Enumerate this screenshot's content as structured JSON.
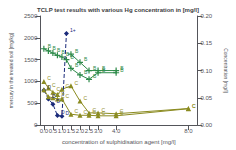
{
  "chart_data": {
    "type": "line",
    "title": "TCLP test results with various Hg concentration in [mg/l]",
    "xlabel": "concentration of sulphidisation agent [mg/l]",
    "ylabel": "mercury in the treated soil [mg/kg]",
    "y2label": "Concentration [mg/l]",
    "grid": false,
    "xlim": [
      -0.2,
      8.5
    ],
    "xticks": [
      {
        "value": 0,
        "label": "0.0"
      },
      {
        "value": 0.5,
        "label": "0.5"
      },
      {
        "value": 1.0,
        "label": "1.0"
      },
      {
        "value": 1.5,
        "label": "1.5"
      },
      {
        "value": 2.0,
        "label": "2.0"
      },
      {
        "value": 2.5,
        "label": "2.5"
      },
      {
        "value": 3.0,
        "label": "3.0"
      },
      {
        "value": 4.0,
        "label": "4.0"
      },
      {
        "value": 8.0,
        "label": "8.0"
      }
    ],
    "ylim": [
      0,
      2500
    ],
    "yticks": [
      0,
      500,
      1000,
      1500,
      2000,
      2500
    ],
    "y2lim": [
      0,
      0.2
    ],
    "y2ticks": [
      {
        "value": 0,
        "label": "0.00"
      },
      {
        "value": 0.05,
        "label": "0.05"
      },
      {
        "value": 0.1,
        "label": "0.10"
      },
      {
        "value": 0.15,
        "label": "0.15"
      },
      {
        "value": 0.2,
        "label": "0.20"
      }
    ],
    "series": [
      {
        "axis": "y",
        "color": "#2e8b4a",
        "marker": "plus",
        "line_style": "solid",
        "x": [
          0,
          0.25,
          0.5,
          0.75,
          1.0,
          1.25,
          1.5,
          2.0,
          2.5,
          3.0,
          4.0
        ],
        "values": [
          1750,
          1700,
          1650,
          1600,
          1560,
          1500,
          1300,
          1150,
          1050,
          1200,
          1200
        ],
        "annotations": [
          "B",
          "B",
          "B",
          "B",
          "B",
          "B",
          "B",
          "B",
          "B",
          "B",
          "B"
        ]
      },
      {
        "axis": "y",
        "color": "#8b8b20",
        "marker": "triangle",
        "line_style": "solid",
        "x": [
          0,
          0.25,
          0.5,
          0.75,
          1.0,
          1.5,
          2.0,
          2.5,
          3.0,
          4.0,
          8.0
        ],
        "values": [
          1000,
          850,
          750,
          700,
          820,
          900,
          550,
          280,
          280,
          260,
          380
        ],
        "annotations": [
          "C",
          "C",
          "C",
          "C",
          "C",
          "C",
          "C",
          "C",
          "C",
          "C",
          "C"
        ]
      },
      {
        "axis": "y",
        "color": "#1a2a7a",
        "marker": "diamond",
        "line_style": "dashed",
        "x": [
          0,
          0.25,
          0.5,
          0.75,
          1.0,
          1.25
        ],
        "values": [
          800,
          600,
          480,
          220,
          200,
          2100
        ],
        "annotations": [
          "D",
          "D",
          "D",
          "D",
          "D",
          "1+"
        ]
      },
      {
        "axis": "y2",
        "color": "#2e8b4a",
        "marker": "plus",
        "line_style": "solid",
        "x": [
          1.5,
          2.0,
          2.5,
          3.0,
          4.0
        ],
        "values": [
          0.13,
          0.115,
          0.1,
          0.1,
          0.1
        ],
        "annotations": [
          "B",
          "B",
          "B",
          "B",
          "B"
        ]
      },
      {
        "axis": "y2",
        "color": "#8b8b20",
        "marker": "triangle",
        "line_style": "solid",
        "x": [
          0,
          0.25,
          0.5,
          0.75,
          1.0,
          1.5,
          2.0,
          2.5,
          3.0,
          4.0,
          8.0
        ],
        "values": [
          0.065,
          0.052,
          0.05,
          0.048,
          0.048,
          0.02,
          0.018,
          0.018,
          0.017,
          0.017,
          0.03
        ],
        "annotations": [
          "C",
          "C",
          "C",
          "C",
          "C",
          "C",
          "C",
          "C",
          "C",
          "C",
          "C"
        ]
      }
    ]
  }
}
